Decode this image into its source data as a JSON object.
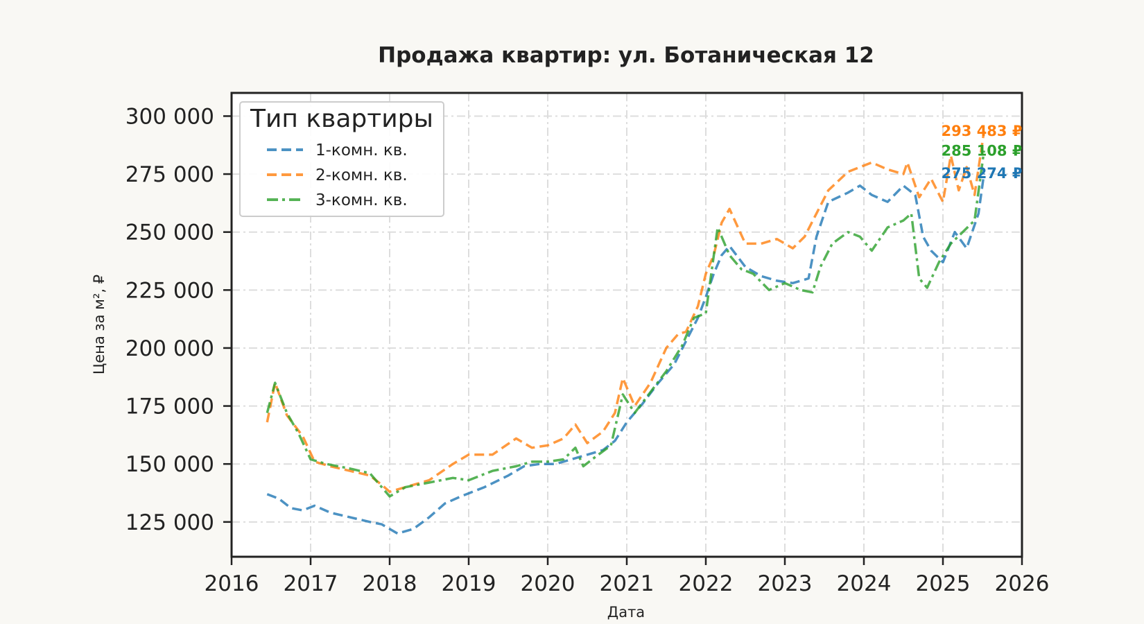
{
  "chart_data": {
    "type": "line",
    "title": "Продажа квартир: ул. Ботаническая 12",
    "xlabel": "Дата",
    "ylabel": "Цена за м², ₽",
    "xlim": [
      2016,
      2026
    ],
    "ylim": [
      110000,
      310000
    ],
    "x_ticks": [
      2016,
      2017,
      2018,
      2019,
      2020,
      2021,
      2022,
      2023,
      2024,
      2025,
      2026
    ],
    "x_tick_labels": [
      "2016",
      "2017",
      "2018",
      "2019",
      "2020",
      "2021",
      "2022",
      "2023",
      "2024",
      "2025",
      "2026"
    ],
    "y_ticks": [
      125000,
      150000,
      175000,
      200000,
      225000,
      250000,
      275000,
      300000
    ],
    "y_tick_labels": [
      "125 000",
      "150 000",
      "175 000",
      "200 000",
      "225 000",
      "250 000",
      "275 000",
      "300 000"
    ],
    "grid": true,
    "legend": {
      "title": "Тип квартиры",
      "position": "top-left"
    },
    "series": [
      {
        "name": "1-комн. кв.",
        "color": "#1f77b4",
        "dash": "dashed",
        "end_label": "275 274 ₽",
        "x": [
          2016.45,
          2016.6,
          2016.75,
          2016.9,
          2017.05,
          2017.25,
          2017.5,
          2017.75,
          2017.9,
          2018.0,
          2018.1,
          2018.3,
          2018.5,
          2018.7,
          2018.9,
          2019.2,
          2019.5,
          2019.7,
          2019.9,
          2020.1,
          2020.3,
          2020.5,
          2020.7,
          2020.85,
          2021.0,
          2021.2,
          2021.4,
          2021.6,
          2021.75,
          2021.9,
          2022.0,
          2022.1,
          2022.2,
          2022.3,
          2022.5,
          2022.7,
          2022.9,
          2023.1,
          2023.3,
          2023.4,
          2023.55,
          2023.8,
          2023.95,
          2024.1,
          2024.3,
          2024.5,
          2024.65,
          2024.75,
          2024.85,
          2025.0,
          2025.15,
          2025.3,
          2025.45,
          2025.52
        ],
        "y": [
          137000,
          135000,
          131000,
          130000,
          132000,
          129000,
          127000,
          125000,
          124000,
          122000,
          120000,
          122000,
          127000,
          133000,
          136000,
          140000,
          145000,
          149000,
          150000,
          150000,
          152000,
          154000,
          156000,
          160000,
          168000,
          176000,
          185000,
          193000,
          203000,
          213000,
          222000,
          232000,
          240000,
          244000,
          235000,
          231000,
          229000,
          228000,
          230000,
          248000,
          263000,
          267000,
          270000,
          266000,
          263000,
          270000,
          266000,
          248000,
          242000,
          237000,
          250000,
          243000,
          258000,
          275274
        ]
      },
      {
        "name": "2-комн. кв.",
        "color": "#ff7f0e",
        "dash": "dashed",
        "end_label": "293 483 ₽",
        "x": [
          2016.45,
          2016.55,
          2016.7,
          2016.9,
          2017.05,
          2017.25,
          2017.5,
          2017.75,
          2017.9,
          2018.0,
          2018.2,
          2018.5,
          2018.8,
          2019.0,
          2019.3,
          2019.6,
          2019.8,
          2020.0,
          2020.2,
          2020.35,
          2020.5,
          2020.7,
          2020.85,
          2020.95,
          2021.1,
          2021.3,
          2021.5,
          2021.65,
          2021.75,
          2021.9,
          2022.0,
          2022.1,
          2022.2,
          2022.3,
          2022.5,
          2022.7,
          2022.9,
          2023.1,
          2023.25,
          2023.4,
          2023.55,
          2023.8,
          2023.95,
          2024.1,
          2024.3,
          2024.5,
          2024.55,
          2024.7,
          2024.85,
          2025.0,
          2025.1,
          2025.2,
          2025.3,
          2025.4,
          2025.52
        ],
        "y": [
          168000,
          185000,
          171000,
          162000,
          151000,
          149000,
          147000,
          145000,
          141000,
          138000,
          140000,
          143000,
          150000,
          154000,
          154000,
          161000,
          157000,
          158000,
          161000,
          167000,
          159000,
          164000,
          172000,
          187000,
          175000,
          185000,
          200000,
          206000,
          207000,
          218000,
          232000,
          240000,
          254000,
          260000,
          245000,
          245000,
          247000,
          243000,
          248000,
          258000,
          268000,
          276000,
          278000,
          280000,
          277000,
          275000,
          280000,
          265000,
          273000,
          263000,
          283000,
          268000,
          278000,
          266000,
          293483
        ]
      },
      {
        "name": "3-комн. кв.",
        "color": "#2ca02c",
        "dash": "dashdot",
        "end_label": "285 108 ₽",
        "x": [
          2016.45,
          2016.55,
          2016.7,
          2016.85,
          2017.0,
          2017.2,
          2017.5,
          2017.75,
          2018.0,
          2018.2,
          2018.5,
          2018.8,
          2019.0,
          2019.3,
          2019.6,
          2019.8,
          2020.0,
          2020.2,
          2020.35,
          2020.45,
          2020.6,
          2020.8,
          2020.95,
          2021.1,
          2021.3,
          2021.5,
          2021.7,
          2021.85,
          2022.0,
          2022.15,
          2022.3,
          2022.45,
          2022.6,
          2022.8,
          2023.0,
          2023.2,
          2023.35,
          2023.45,
          2023.6,
          2023.8,
          2023.95,
          2024.1,
          2024.3,
          2024.5,
          2024.6,
          2024.7,
          2024.8,
          2024.95,
          2025.1,
          2025.25,
          2025.4,
          2025.52
        ],
        "y": [
          172000,
          185000,
          172000,
          163000,
          152000,
          150000,
          148000,
          146000,
          136000,
          140000,
          142000,
          144000,
          143000,
          147000,
          149000,
          151000,
          151000,
          152000,
          157000,
          149000,
          153000,
          158000,
          180000,
          172000,
          181000,
          190000,
          201000,
          213000,
          215000,
          252000,
          240000,
          234000,
          232000,
          225000,
          228000,
          225000,
          224000,
          235000,
          245000,
          250000,
          248000,
          242000,
          252000,
          255000,
          258000,
          230000,
          226000,
          237000,
          245000,
          250000,
          255000,
          285108
        ]
      }
    ]
  }
}
